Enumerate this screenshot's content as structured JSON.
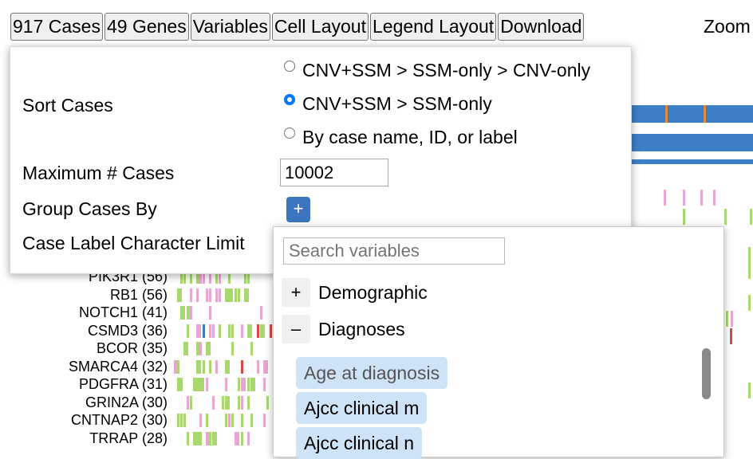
{
  "toolbar": {
    "cases_label": "917 Cases",
    "genes_label": "49 Genes",
    "variables_label": "Variables",
    "cell_layout_label": "Cell Layout",
    "legend_layout_label": "Legend Layout",
    "download_label": "Download",
    "zoom_label": "Zoom"
  },
  "menu": {
    "sort_cases_label": "Sort Cases",
    "sort_options": [
      {
        "label": "CNV+SSM > SSM-only > CNV-only",
        "checked": false
      },
      {
        "label": "CNV+SSM > SSM-only",
        "checked": true
      },
      {
        "label": "By case name, ID, or label",
        "checked": false
      }
    ],
    "max_cases_label": "Maximum # Cases",
    "max_cases_value": "10002",
    "group_cases_label": "Group Cases By",
    "group_add_symbol": "+",
    "case_label_limit_label": "Case Label Character Limit"
  },
  "variables_dropdown": {
    "search_placeholder": "Search variables",
    "groups": [
      {
        "toggle": "+",
        "label": "Demographic"
      },
      {
        "toggle": "–",
        "label": "Diagnoses"
      }
    ],
    "terms": [
      "Age at diagnosis",
      "Ajcc clinical m",
      "Ajcc clinical n"
    ]
  },
  "genes": [
    {
      "label": "PIK3R1 (56)"
    },
    {
      "label": "RB1 (56)"
    },
    {
      "label": "NOTCH1 (41)"
    },
    {
      "label": "CSMD3 (36)"
    },
    {
      "label": "BCOR (35)"
    },
    {
      "label": "SMARCA4 (32)"
    },
    {
      "label": "PDGFRA (31)"
    },
    {
      "label": "GRIN2A (30)"
    },
    {
      "label": "CNTNAP2 (30)"
    },
    {
      "label": "TRRAP (28)"
    }
  ],
  "colors": {
    "cnv_blue": "#3d7fc4",
    "missense_green": "#a8d86e",
    "splice_pink": "#e8a6d3",
    "truncating_orange": "#e58a3c",
    "button_blue": "#3d74bf",
    "radio_checked": "#0075ff"
  }
}
